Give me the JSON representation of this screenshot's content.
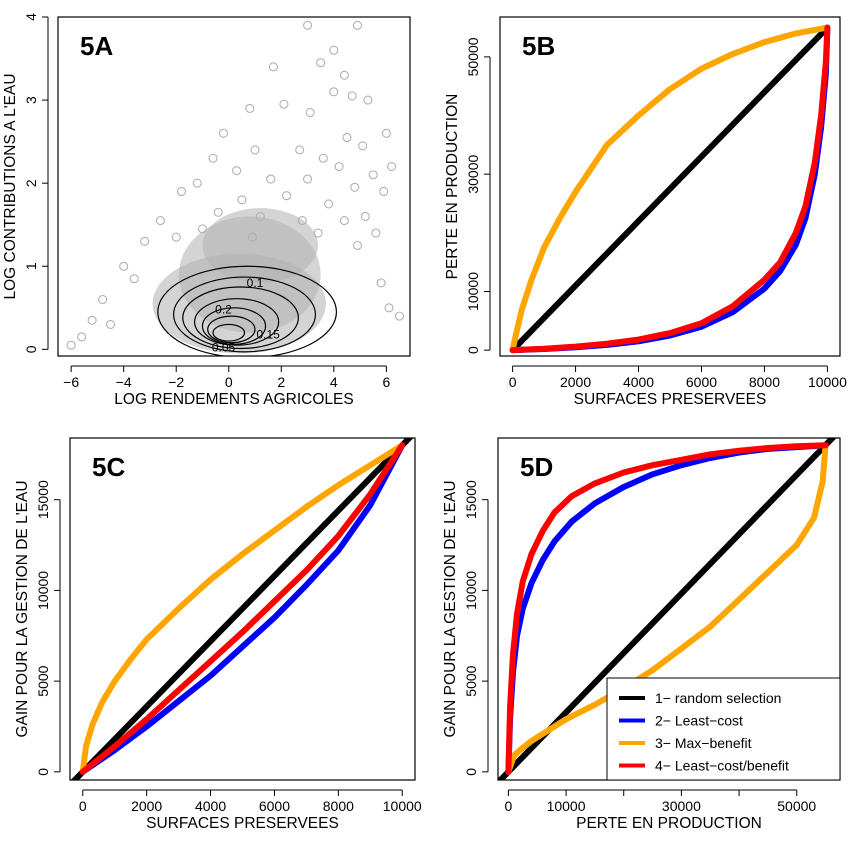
{
  "chart_data": [
    {
      "id": "5A",
      "type": "scatter",
      "panel_label": "5A",
      "xlabel": "LOG RENDEMENTS AGRICOLES",
      "ylabel": "LOG CONTRIBUTIONS A L'EAU",
      "xlim": [
        -6.5,
        6.9
      ],
      "ylim": [
        -0.08,
        4.0
      ],
      "xticks": [
        -6,
        -4,
        -2,
        0,
        2,
        4,
        6
      ],
      "xtick_labels": [
        "−6",
        "−4",
        "−2",
        "0",
        "2",
        "4",
        "6"
      ],
      "yticks": [
        0,
        1,
        2,
        3,
        4
      ],
      "ytick_labels": [
        "0",
        "1",
        "2",
        "3",
        "4"
      ],
      "point_color": "#b0b0b0",
      "points": [
        [
          3.0,
          3.9
        ],
        [
          4.9,
          3.9
        ],
        [
          4.0,
          3.6
        ],
        [
          3.5,
          3.45
        ],
        [
          4.4,
          3.3
        ],
        [
          1.7,
          3.4
        ],
        [
          4.0,
          3.1
        ],
        [
          4.7,
          3.05
        ],
        [
          5.3,
          3.0
        ],
        [
          2.1,
          2.95
        ],
        [
          0.8,
          2.9
        ],
        [
          3.1,
          2.85
        ],
        [
          6.0,
          2.6
        ],
        [
          -0.2,
          2.6
        ],
        [
          4.5,
          2.55
        ],
        [
          5.1,
          2.45
        ],
        [
          1.0,
          2.4
        ],
        [
          2.7,
          2.4
        ],
        [
          -0.6,
          2.3
        ],
        [
          3.6,
          2.3
        ],
        [
          4.2,
          2.2
        ],
        [
          6.2,
          2.2
        ],
        [
          0.3,
          2.15
        ],
        [
          5.5,
          2.1
        ],
        [
          1.6,
          2.05
        ],
        [
          -1.2,
          2.0
        ],
        [
          3.0,
          2.05
        ],
        [
          4.8,
          1.95
        ],
        [
          -1.8,
          1.9
        ],
        [
          5.9,
          1.9
        ],
        [
          2.2,
          1.85
        ],
        [
          0.5,
          1.8
        ],
        [
          3.8,
          1.75
        ],
        [
          -2.6,
          1.55
        ],
        [
          5.2,
          1.6
        ],
        [
          -0.4,
          1.65
        ],
        [
          1.2,
          1.6
        ],
        [
          4.4,
          1.55
        ],
        [
          2.8,
          1.55
        ],
        [
          -3.2,
          1.3
        ],
        [
          -1.0,
          1.45
        ],
        [
          5.6,
          1.4
        ],
        [
          3.4,
          1.4
        ],
        [
          0.9,
          1.35
        ],
        [
          -2.0,
          1.35
        ],
        [
          4.9,
          1.25
        ],
        [
          -4.0,
          1.0
        ],
        [
          -3.6,
          0.85
        ],
        [
          6.1,
          0.5
        ],
        [
          6.5,
          0.4
        ],
        [
          5.8,
          0.8
        ],
        [
          -4.8,
          0.6
        ],
        [
          -5.6,
          0.15
        ],
        [
          -6.0,
          0.05
        ],
        [
          -5.2,
          0.35
        ],
        [
          -4.5,
          0.3
        ]
      ],
      "cloud": [
        {
          "cx": 0.4,
          "cy": 0.55,
          "rx": 3.3,
          "ry": 0.6
        },
        {
          "cx": 0.8,
          "cy": 0.9,
          "rx": 2.7,
          "ry": 0.7
        },
        {
          "cx": 1.2,
          "cy": 1.25,
          "rx": 2.2,
          "ry": 0.45
        }
      ],
      "contours": [
        {
          "label": "0.05",
          "cx": 0.7,
          "cy": 0.45,
          "rx": 3.4,
          "ry": 0.55,
          "label_at": [
            -0.2,
            0.02
          ]
        },
        {
          "label": "0.1",
          "cx": 0.6,
          "cy": 0.42,
          "rx": 2.7,
          "ry": 0.45,
          "label_at": [
            1.0,
            0.8
          ]
        },
        {
          "label": "",
          "cx": 0.45,
          "cy": 0.38,
          "rx": 2.2,
          "ry": 0.37
        },
        {
          "label": "0.2",
          "cx": 0.3,
          "cy": 0.33,
          "rx": 1.6,
          "ry": 0.28,
          "label_at": [
            -0.2,
            0.48
          ]
        },
        {
          "label": "",
          "cx": 0.2,
          "cy": 0.28,
          "rx": 1.2,
          "ry": 0.22
        },
        {
          "label": "",
          "cx": 0.1,
          "cy": 0.24,
          "rx": 0.9,
          "ry": 0.16
        },
        {
          "label": "0.15",
          "cx": 0.0,
          "cy": 0.2,
          "rx": 0.6,
          "ry": 0.1,
          "label_at": [
            1.5,
            0.18
          ]
        }
      ]
    },
    {
      "id": "5B",
      "type": "line",
      "panel_label": "5B",
      "xlabel": "SURFACES PRESERVEES",
      "ylabel": "PERTE EN PRODUCTION",
      "xlim": [
        -400,
        10400
      ],
      "ylim": [
        -1000,
        56800
      ],
      "xticks": [
        0,
        2000,
        4000,
        6000,
        8000,
        10000
      ],
      "xtick_labels": [
        "0",
        "2000",
        "4000",
        "6000",
        "8000",
        "10000"
      ],
      "yticks": [
        0,
        10000,
        30000,
        50000
      ],
      "ytick_labels": [
        "0",
        "10000",
        "30000",
        "50000"
      ],
      "series": [
        {
          "color": "#000000",
          "x": [
            0,
            10000
          ],
          "y": [
            0,
            55000
          ]
        },
        {
          "color": "#0000ff",
          "x": [
            0,
            1000,
            2000,
            3000,
            4000,
            5000,
            6000,
            7000,
            8000,
            8500,
            9000,
            9300,
            9600,
            9800,
            9950,
            10000
          ],
          "y": [
            0,
            200,
            500,
            900,
            1500,
            2500,
            4000,
            6500,
            10500,
            13500,
            18000,
            22500,
            30000,
            38000,
            47000,
            55000
          ]
        },
        {
          "color": "#ffa500",
          "x": [
            0,
            100,
            300,
            600,
            1000,
            1500,
            2000,
            3000,
            4000,
            5000,
            6000,
            7000,
            8000,
            9000,
            10000
          ],
          "y": [
            0,
            2500,
            7000,
            12000,
            17500,
            22500,
            27000,
            35000,
            40000,
            44500,
            48000,
            50500,
            52500,
            54000,
            55000
          ]
        },
        {
          "color": "#ff0000",
          "x": [
            0,
            1000,
            2000,
            3000,
            4000,
            5000,
            6000,
            7000,
            8000,
            8500,
            9000,
            9300,
            9600,
            9800,
            9950,
            10000
          ],
          "y": [
            0,
            250,
            600,
            1100,
            1800,
            2900,
            4600,
            7500,
            12000,
            15000,
            20000,
            24500,
            32000,
            40000,
            49000,
            55000
          ]
        }
      ]
    },
    {
      "id": "5C",
      "type": "line",
      "panel_label": "5C",
      "xlabel": "SURFACES PRESERVEES",
      "ylabel": "GAIN POUR LA GESTION DE L'EAU",
      "xlim": [
        -400,
        10400
      ],
      "ylim": [
        -450,
        18400
      ],
      "xticks": [
        0,
        2000,
        4000,
        6000,
        8000,
        10000
      ],
      "xtick_labels": [
        "0",
        "2000",
        "4000",
        "6000",
        "8000",
        "10000"
      ],
      "yticks": [
        0,
        5000,
        10000,
        15000
      ],
      "ytick_labels": [
        "0",
        "5000",
        "10000",
        "15000"
      ],
      "series": [
        {
          "color": "#000000",
          "x": [
            -400,
            10400
          ],
          "y": [
            -720,
            18720
          ]
        },
        {
          "color": "#0000ff",
          "x": [
            0,
            1000,
            2000,
            3000,
            4000,
            5000,
            6000,
            7000,
            8000,
            9000,
            10000
          ],
          "y": [
            0,
            1200,
            2500,
            3900,
            5300,
            6900,
            8500,
            10300,
            12200,
            14700,
            18000
          ]
        },
        {
          "color": "#ffa500",
          "x": [
            0,
            100,
            300,
            600,
            1000,
            1500,
            2000,
            3000,
            4000,
            5000,
            6000,
            7000,
            8000,
            9000,
            10000
          ],
          "y": [
            0,
            1400,
            2600,
            3800,
            5000,
            6200,
            7300,
            9000,
            10600,
            12000,
            13300,
            14600,
            15800,
            16900,
            18000
          ]
        },
        {
          "color": "#ff0000",
          "x": [
            0,
            1000,
            2000,
            3000,
            4000,
            5000,
            6000,
            7000,
            8000,
            9000,
            10000
          ],
          "y": [
            0,
            1400,
            2900,
            4500,
            6100,
            7700,
            9400,
            11100,
            13000,
            15300,
            18000
          ]
        }
      ]
    },
    {
      "id": "5D",
      "type": "line",
      "panel_label": "5D",
      "xlabel": "PERTE EN PRODUCTION",
      "ylabel": "GAIN POUR LA GESTION DE L'EAU",
      "xlim": [
        -1800,
        57500
      ],
      "ylim": [
        -450,
        18400
      ],
      "xticks": [
        0,
        10000,
        20000,
        30000,
        40000,
        50000
      ],
      "xtick_labels": [
        "0",
        "10000",
        "",
        "30000",
        "",
        "50000"
      ],
      "yticks": [
        0,
        5000,
        10000,
        15000
      ],
      "ytick_labels": [
        "0",
        "5000",
        "10000",
        "15000"
      ],
      "legend": {
        "position": "bottom-right",
        "entries": [
          {
            "label": "1− random selection",
            "color": "#000000"
          },
          {
            "label": "2− Least−cost",
            "color": "#0000ff"
          },
          {
            "label": "3− Max−benefit",
            "color": "#ffa500"
          },
          {
            "label": "4− Least−cost/benefit",
            "color": "#ff0000"
          }
        ]
      },
      "series": [
        {
          "color": "#000000",
          "x": [
            -1800,
            57500
          ],
          "y": [
            -590,
            18830
          ]
        },
        {
          "color": "#0000ff",
          "x": [
            0,
            300,
            800,
            1500,
            2500,
            4000,
            6000,
            8000,
            11000,
            15000,
            20000,
            25000,
            30000,
            35000,
            40000,
            45000,
            50000,
            55000
          ],
          "y": [
            0,
            3000,
            5500,
            7500,
            9000,
            10400,
            11700,
            12700,
            13800,
            14800,
            15700,
            16400,
            16900,
            17300,
            17600,
            17800,
            17900,
            18000
          ]
        },
        {
          "color": "#ffa500",
          "x": [
            0,
            1000,
            2000,
            4000,
            7000,
            10000,
            15000,
            20000,
            25000,
            30000,
            35000,
            40000,
            45000,
            50000,
            53000,
            54500,
            55000
          ],
          "y": [
            0,
            900,
            1200,
            1700,
            2300,
            2900,
            3700,
            4600,
            5600,
            6800,
            8000,
            9500,
            11000,
            12500,
            14000,
            16000,
            18000
          ]
        },
        {
          "color": "#ff0000",
          "x": [
            0,
            300,
            800,
            1500,
            2500,
            4000,
            6000,
            8000,
            11000,
            15000,
            20000,
            25000,
            30000,
            35000,
            40000,
            45000,
            50000,
            55000
          ],
          "y": [
            0,
            3600,
            6500,
            8700,
            10500,
            12000,
            13300,
            14300,
            15200,
            15900,
            16500,
            16900,
            17200,
            17500,
            17700,
            17850,
            17950,
            18000
          ]
        }
      ]
    }
  ]
}
